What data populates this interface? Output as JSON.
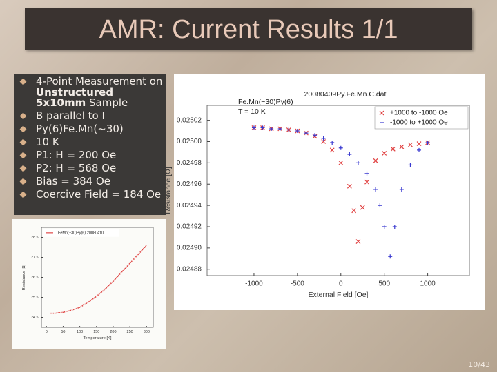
{
  "slide": {
    "title": "AMR: Current Results 1/1",
    "bullets": [
      [
        "4-Point Measurement on ",
        "Unstructured 5x10mm",
        " Sample"
      ],
      [
        "B parallel to I"
      ],
      [
        "Py(6)Fe.Mn(~30)"
      ],
      [
        "10 K"
      ],
      [
        "P1: H = 200 Oe"
      ],
      [
        "P2: H = 568 Oe"
      ],
      [
        "Bias = 384 Oe"
      ],
      [
        "Coercive Field = 184 Oe"
      ]
    ],
    "bold_parts": [
      [
        1
      ]
    ],
    "page_number": "10/43"
  },
  "chart_data": [
    {
      "type": "scatter",
      "title": "20080409Py.Fe.Mn.C.dat",
      "annotations": [
        "Fe.Mn(~30)Py(6)",
        "T = 10 K"
      ],
      "x_label": "External Field [Oe]",
      "y_label": "Resistance [Ω]",
      "xlim": [
        -1540,
        1480
      ],
      "xticks": [
        -1000,
        -500,
        0,
        500,
        1000
      ],
      "ylim": [
        0.024874,
        0.025034
      ],
      "yticks": [
        0.02488,
        {
          "value": 0.0249,
          "label": "0.02490"
        },
        0.02492,
        0.02494,
        0.02496,
        0.02498,
        {
          "value": 0.025,
          "label": "0.02500"
        },
        0.02502
      ],
      "legend": "upper right",
      "series": [
        {
          "name": "+1000 to -1000 Oe",
          "color": "#e04040",
          "marker": "x",
          "x": [
            1000,
            900,
            800,
            700,
            600,
            500,
            400,
            300,
            250,
            200,
            150,
            100,
            0,
            -100,
            -200,
            -300,
            -400,
            -500,
            -600,
            -700,
            -800,
            -900,
            -1000
          ],
          "values": [
            0.024999,
            0.024998,
            0.024997,
            0.024995,
            0.024993,
            0.024989,
            0.024982,
            0.024962,
            0.024938,
            0.024906,
            0.024935,
            0.024958,
            0.02498,
            0.024992,
            0.025,
            0.025005,
            0.025008,
            0.02501,
            0.025011,
            0.025012,
            0.025012,
            0.025013,
            0.025013
          ]
        },
        {
          "name": "-1000 to +1000 Oe",
          "color": "#3a3ad0",
          "marker": "+",
          "x": [
            -1000,
            -900,
            -800,
            -700,
            -600,
            -500,
            -400,
            -300,
            -200,
            -100,
            0,
            100,
            200,
            300,
            400,
            450,
            500,
            568,
            620,
            700,
            800,
            900,
            1000
          ],
          "values": [
            0.025013,
            0.025013,
            0.025012,
            0.025012,
            0.025011,
            0.02501,
            0.025008,
            0.025006,
            0.025003,
            0.024999,
            0.024994,
            0.024988,
            0.02498,
            0.02497,
            0.024955,
            0.02494,
            0.02492,
            0.024892,
            0.02492,
            0.024955,
            0.024978,
            0.024992,
            0.024999
          ]
        }
      ]
    },
    {
      "type": "line",
      "x_label": "Temperature [K]",
      "y_label": "Resistance [Ω]",
      "xlim": [
        -15,
        320
      ],
      "xticks": [
        0,
        50,
        100,
        150,
        200,
        250,
        300
      ],
      "ylim": [
        24.0,
        29.0
      ],
      "yticks": [
        24.5,
        25.5,
        26.5,
        27.5,
        28.5
      ],
      "legend": "upper left",
      "series": [
        {
          "name": "FeMn(~30)Py(6) 20080410",
          "color": "#e04848",
          "x": [
            10,
            25,
            50,
            75,
            100,
            125,
            150,
            175,
            200,
            225,
            250,
            275,
            300
          ],
          "values": [
            24.7,
            24.7,
            24.75,
            24.85,
            25.0,
            25.25,
            25.55,
            25.9,
            26.3,
            26.75,
            27.2,
            27.65,
            28.1
          ]
        }
      ]
    }
  ]
}
